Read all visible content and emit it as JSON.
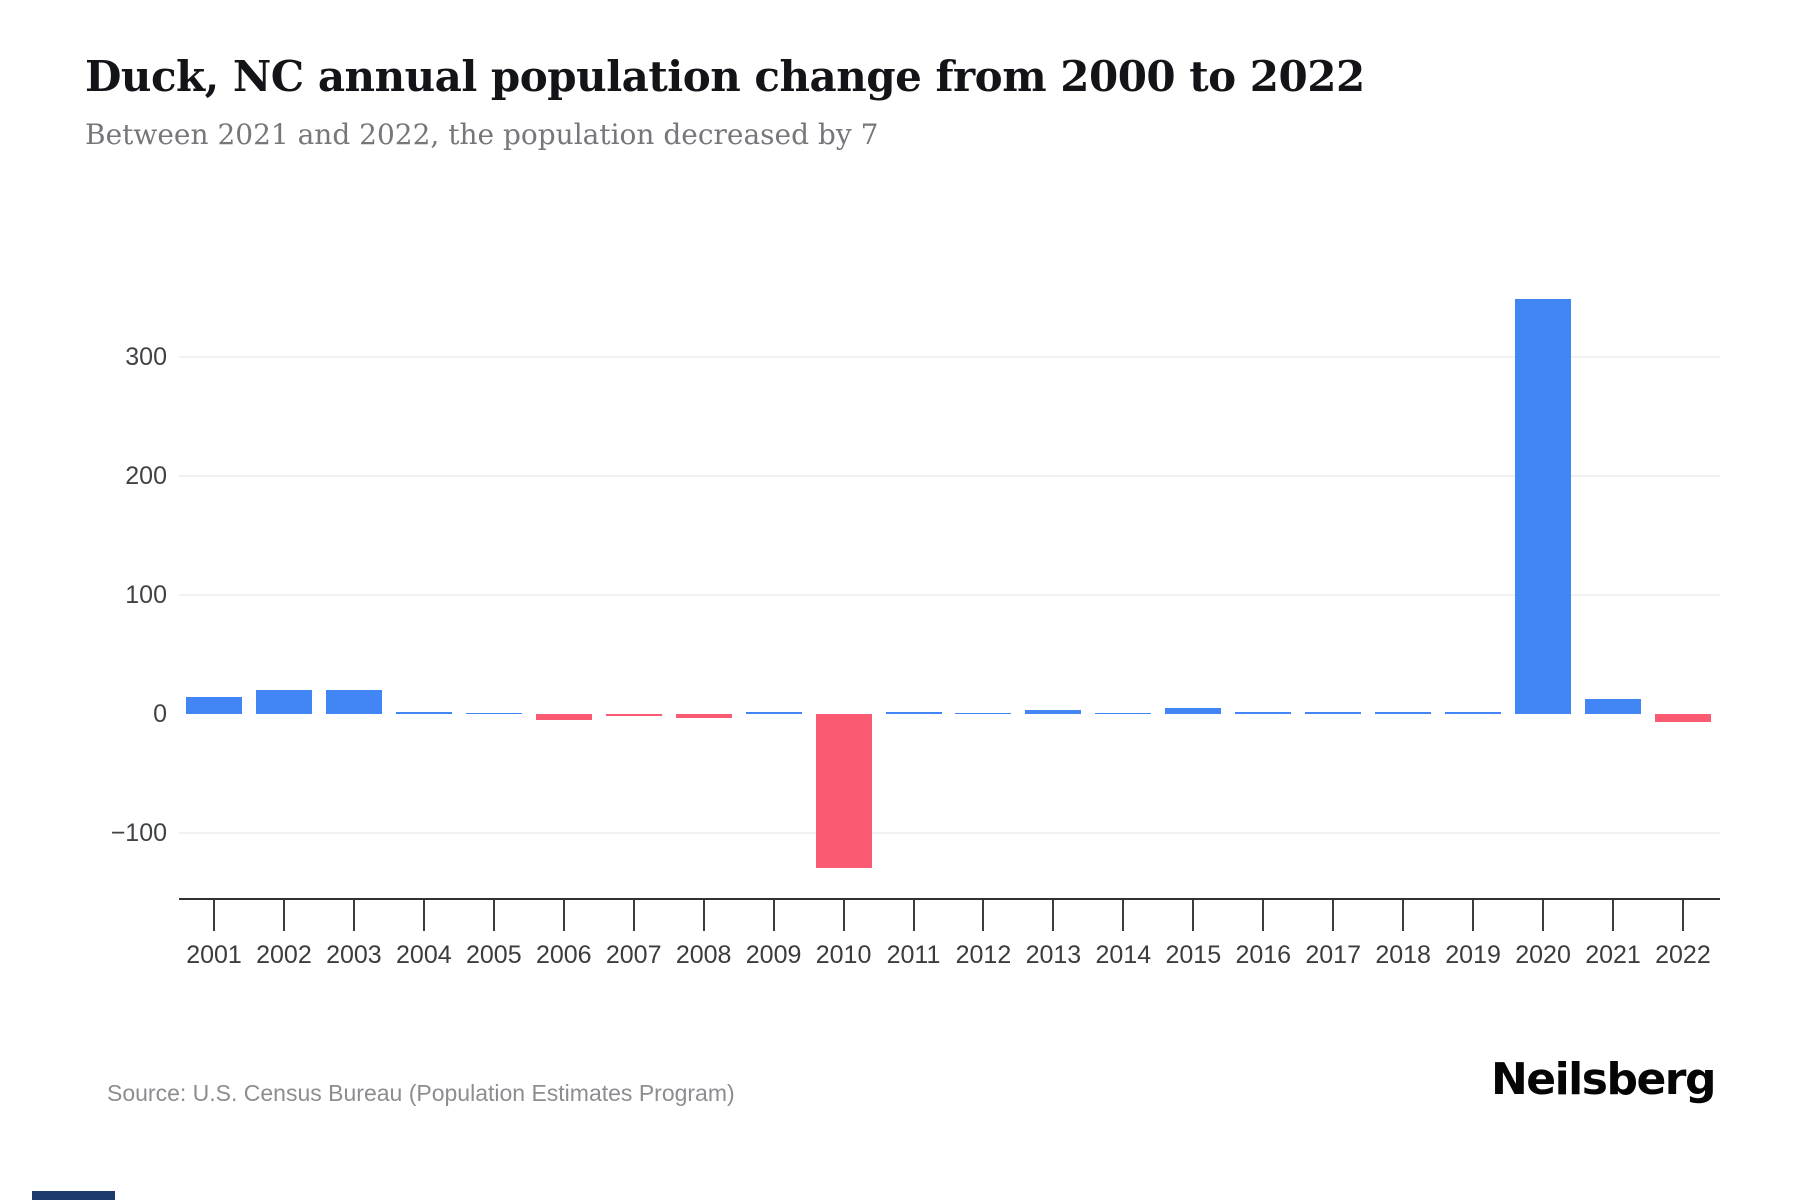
{
  "header": {
    "title": "Duck, NC annual population change from 2000 to 2022",
    "subtitle": "Between 2021 and 2022, the population decreased by 7"
  },
  "footer": {
    "source": "Source: U.S. Census Bureau (Population Estimates Program)",
    "brand": "Neilsberg"
  },
  "colors": {
    "positive_bar": "#4285F4",
    "negative_bar": "#FA5A72",
    "gridline": "#f1f1f2",
    "axis_line": "#2f3133",
    "axis_text": "#3a3c3e",
    "title_text": "#121418",
    "subtitle_text": "#75777b",
    "source_text": "#8b8d90"
  },
  "chart_data": {
    "type": "bar",
    "title": "Duck, NC annual population change from 2000 to 2022",
    "subtitle": "Between 2021 and 2022, the population decreased by 7",
    "xlabel": "",
    "ylabel": "",
    "categories": [
      "2001",
      "2002",
      "2003",
      "2004",
      "2005",
      "2006",
      "2007",
      "2008",
      "2009",
      "2010",
      "2011",
      "2012",
      "2013",
      "2014",
      "2015",
      "2016",
      "2017",
      "2018",
      "2019",
      "2020",
      "2021",
      "2022"
    ],
    "values": [
      14,
      20,
      20,
      2,
      1,
      -5,
      -2,
      -3,
      2,
      -129,
      2,
      1,
      3,
      1,
      5,
      2,
      2,
      2,
      2,
      349,
      13,
      -7
    ],
    "ytick_values": [
      -100,
      0,
      100,
      200,
      300
    ],
    "ytick_labels": [
      "−100",
      "0",
      "100",
      "200",
      "300"
    ],
    "ylim": [
      -155,
      400
    ],
    "grid": true,
    "legend": false,
    "bar_color_rule": "blue for increase, red/pink for decrease"
  }
}
